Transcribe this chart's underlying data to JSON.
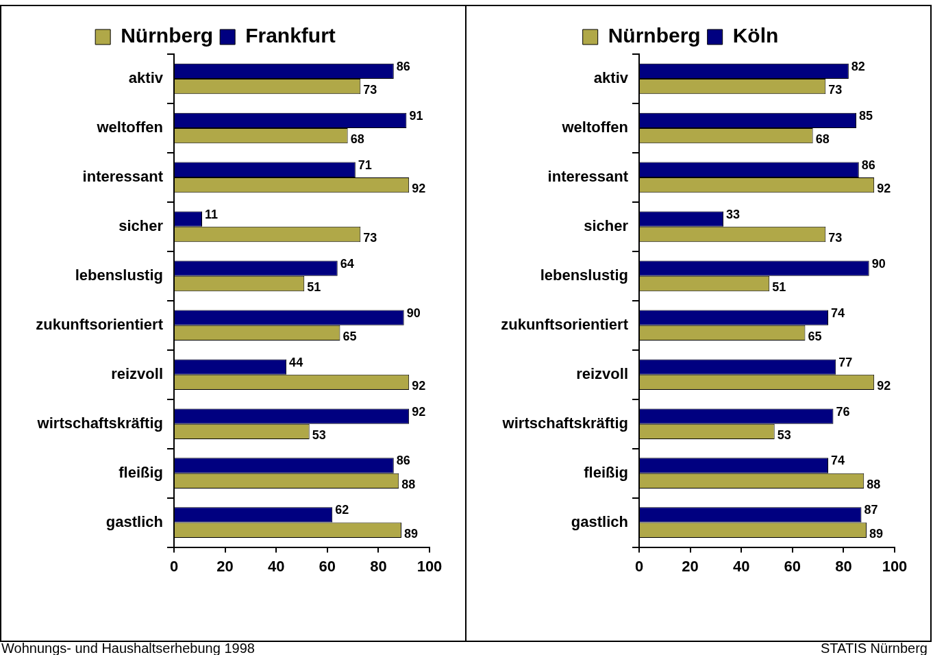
{
  "chart_data": [
    {
      "type": "bar",
      "orientation": "horizontal",
      "categories": [
        "aktiv",
        "weltoffen",
        "interessant",
        "sicher",
        "lebenslustig",
        "zukunftsorientiert",
        "reizvoll",
        "wirtschaftskräftig",
        "fleißig",
        "gastlich"
      ],
      "series": [
        {
          "name": "Nürnberg",
          "color": "#b0a848",
          "values": [
            73,
            68,
            92,
            73,
            51,
            65,
            92,
            53,
            88,
            89
          ]
        },
        {
          "name": "Frankfurt",
          "color": "#000080",
          "values": [
            86,
            91,
            71,
            11,
            64,
            90,
            44,
            92,
            86,
            62
          ]
        }
      ],
      "xlim": [
        0,
        100
      ],
      "xticks": [
        0,
        20,
        40,
        60,
        80,
        100
      ],
      "grid": false,
      "legend": "top",
      "data_labels": true,
      "annotations": [
        "Wohnungs- und Haushaltserhebung 1998"
      ]
    },
    {
      "type": "bar",
      "orientation": "horizontal",
      "categories": [
        "aktiv",
        "weltoffen",
        "interessant",
        "sicher",
        "lebenslustig",
        "zukunftsorientiert",
        "reizvoll",
        "wirtschaftskräftig",
        "fleißig",
        "gastlich"
      ],
      "series": [
        {
          "name": "Nürnberg",
          "color": "#b0a848",
          "values": [
            73,
            68,
            92,
            73,
            51,
            65,
            92,
            53,
            88,
            89
          ]
        },
        {
          "name": "Köln",
          "color": "#000080",
          "values": [
            82,
            85,
            86,
            33,
            90,
            74,
            77,
            76,
            74,
            87
          ]
        }
      ],
      "xlim": [
        0,
        100
      ],
      "xticks": [
        0,
        20,
        40,
        60,
        80,
        100
      ],
      "grid": false,
      "legend": "top",
      "data_labels": true,
      "annotations": [
        "STATIS Nürnberg"
      ]
    }
  ]
}
